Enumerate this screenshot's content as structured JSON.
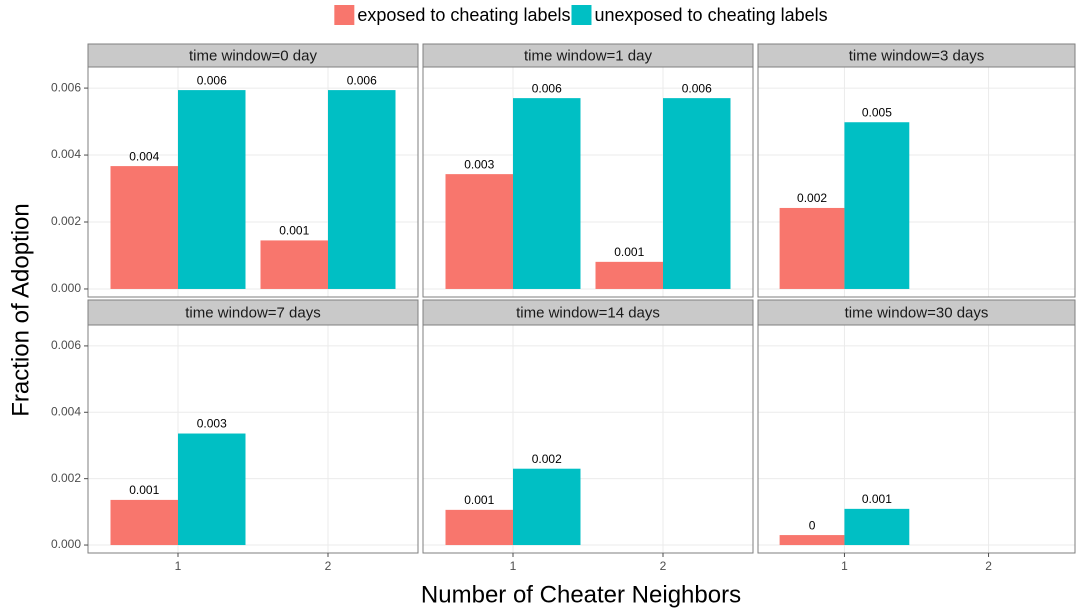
{
  "chart_data": {
    "type": "bar",
    "x_label": "Number of Cheater Neighbors",
    "y_label": "Fraction of Adoption",
    "legend": "top",
    "grid": true,
    "categories": [
      "1",
      "2"
    ],
    "series": [
      {
        "name": "exposed to cheating labels",
        "color": "#f8766d"
      },
      {
        "name": "unexposed to cheating labels",
        "color": "#00bfc4"
      }
    ],
    "ylim": [
      -0.00024,
      0.00663
    ],
    "yticks": [
      {
        "value": 0,
        "label": "0.000"
      },
      0.002,
      0.004,
      0.006
    ],
    "facets": [
      {
        "title": "time window=0 day",
        "values": [
          [
            0.00367,
            0.00145
          ],
          [
            0.00594,
            0.00594
          ]
        ],
        "value_labels": [
          [
            "0.004",
            "0.001"
          ],
          [
            "0.006",
            "0.006"
          ]
        ]
      },
      {
        "title": "time window=1 day",
        "values": [
          [
            0.00343,
            0.00081
          ],
          [
            0.0057,
            0.0057
          ]
        ],
        "value_labels": [
          [
            "0.003",
            "0.001"
          ],
          [
            "0.006",
            "0.006"
          ]
        ]
      },
      {
        "title": "time window=3 days",
        "values": [
          [
            0.00242,
            null
          ],
          [
            0.00498,
            null
          ]
        ],
        "value_labels": [
          [
            "0.002",
            null
          ],
          [
            "0.005",
            null
          ]
        ]
      },
      {
        "title": "time window=7 days",
        "values": [
          [
            0.00136,
            null
          ],
          [
            0.00336,
            null
          ]
        ],
        "value_labels": [
          [
            "0.001",
            null
          ],
          [
            "0.003",
            null
          ]
        ]
      },
      {
        "title": "time window=14 days",
        "values": [
          [
            0.00106,
            null
          ],
          [
            0.0023,
            null
          ]
        ],
        "value_labels": [
          [
            "0.001",
            null
          ],
          [
            "0.002",
            null
          ]
        ]
      },
      {
        "title": "time window=30 days",
        "values": [
          [
            0.0003,
            null
          ],
          [
            0.00109,
            null
          ]
        ],
        "value_labels": [
          [
            "0",
            null
          ],
          [
            "0.001",
            null
          ]
        ]
      }
    ]
  }
}
